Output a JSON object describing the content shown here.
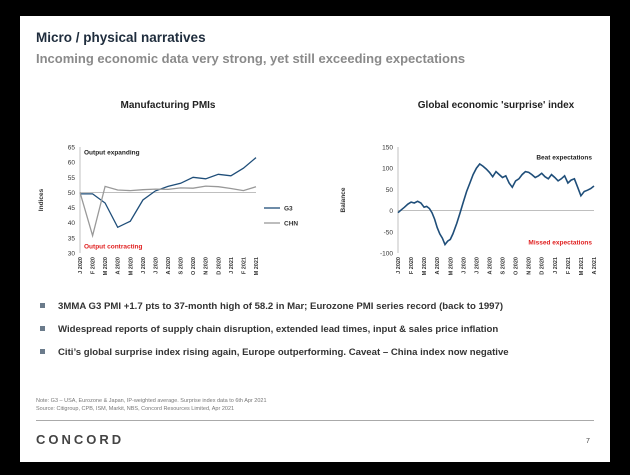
{
  "slide": {
    "title": "Micro / physical narratives",
    "subtitle": "Incoming economic data very strong, yet still exceeding expectations",
    "bullets": [
      "3MMA G3 PMI +1.7 pts to 37-month high of 58.2 in Mar; Eurozone PMI series record (back to 1997)",
      "Widespread reports of supply chain disruption, extended lead times, input & sales price inflation",
      "Citi’s global surprise index rising again, Europe outperforming. Caveat – China index now negative"
    ],
    "note_line1": "Note: G3 – USA, Eurozone & Japan, IP-weighted average. Surprise index data to 6th Apr 2021",
    "note_line2": "Source: Citigroup, CPB, ISM, Markit, NBS, Concord Resources Limited, Apr 2021",
    "logo": "CONCORD",
    "page_number": "7"
  },
  "chart_data": [
    {
      "type": "line",
      "title": "Manufacturing PMIs",
      "ylabel": "Indices",
      "xlabel": "",
      "ylim": [
        30,
        65
      ],
      "yticks": [
        30,
        35,
        40,
        45,
        50,
        55,
        60,
        65
      ],
      "categories": [
        "J 2020",
        "F 2020",
        "M 2020",
        "A 2020",
        "M 2020",
        "J 2020",
        "J 2020",
        "A 2020",
        "S 2020",
        "O 2020",
        "N 2020",
        "D 2020",
        "J 2021",
        "F 2021",
        "M 2021"
      ],
      "series": [
        {
          "name": "G3",
          "color": "#1f4e79",
          "values": [
            49.5,
            49.5,
            46.5,
            38.5,
            40.5,
            47.5,
            50.5,
            52.0,
            53.0,
            55.0,
            54.5,
            56.0,
            55.5,
            58.0,
            61.5
          ]
        },
        {
          "name": "CHN",
          "color": "#999999",
          "values": [
            50.0,
            35.7,
            52.0,
            50.8,
            50.6,
            50.9,
            51.1,
            51.0,
            51.5,
            51.4,
            52.1,
            51.9,
            51.3,
            50.6,
            51.9
          ]
        }
      ],
      "annotations": {
        "top": "Output expanding",
        "bottom": "Output contracting"
      },
      "reference_line": 50,
      "legend": "right"
    },
    {
      "type": "line",
      "title": "Global economic 'surprise' index",
      "ylabel": "Balance",
      "xlabel": "",
      "ylim": [
        -100,
        150
      ],
      "yticks": [
        -100,
        -50,
        0,
        50,
        100,
        150
      ],
      "categories": [
        "J 2020",
        "F 2020",
        "M 2020",
        "A 2020",
        "M 2020",
        "J 2020",
        "J 2020",
        "A 2020",
        "S 2020",
        "O 2020",
        "N 2020",
        "D 2020",
        "J 2021",
        "F 2021",
        "M 2021",
        "A 2021"
      ],
      "x": [
        0,
        0.25,
        0.5,
        0.75,
        1,
        1.25,
        1.5,
        1.75,
        2,
        2.2,
        2.4,
        2.6,
        2.8,
        3,
        3.2,
        3.4,
        3.6,
        3.8,
        4,
        4.2,
        4.5,
        4.75,
        5,
        5.25,
        5.5,
        5.75,
        6,
        6.25,
        6.5,
        6.75,
        7,
        7.25,
        7.5,
        7.75,
        8,
        8.25,
        8.5,
        8.75,
        9,
        9.25,
        9.5,
        9.75,
        10,
        10.25,
        10.5,
        10.75,
        11,
        11.25,
        11.5,
        11.75,
        12,
        12.25,
        12.5,
        12.75,
        13,
        13.25,
        13.5,
        13.75,
        14,
        14.25,
        14.5,
        14.75,
        15
      ],
      "values": [
        -5,
        2,
        8,
        15,
        20,
        18,
        22,
        18,
        8,
        10,
        5,
        -5,
        -20,
        -40,
        -55,
        -65,
        -80,
        -72,
        -68,
        -55,
        -30,
        -5,
        20,
        45,
        65,
        85,
        100,
        110,
        105,
        98,
        90,
        80,
        92,
        85,
        78,
        82,
        65,
        55,
        70,
        75,
        85,
        92,
        90,
        85,
        78,
        82,
        88,
        80,
        75,
        85,
        78,
        70,
        75,
        82,
        65,
        72,
        75,
        55,
        35,
        45,
        48,
        52,
        58
      ],
      "series_color": "#1f4e79",
      "annotations": {
        "top": "Beat expectations",
        "bottom": "Missed expectations"
      },
      "reference_line": 0
    }
  ],
  "colors": {
    "accent": "#1f4e79",
    "red": "#e02020",
    "grey": "#999999"
  }
}
